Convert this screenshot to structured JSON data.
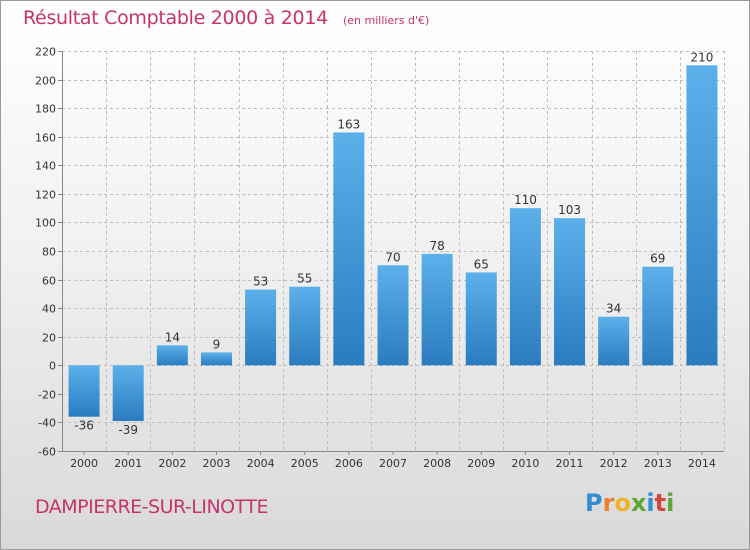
{
  "title": "Résultat Comptable 2000 à 2014",
  "subtitle": "(en milliers d'€)",
  "footer": "DAMPIERRE-SUR-LINOTTE",
  "logo": {
    "text": "Proxiti",
    "letters": [
      {
        "ch": "P",
        "color": "#2f8fd0"
      },
      {
        "ch": "r",
        "color": "#e9812a"
      },
      {
        "ch": "o",
        "color": "#f0b12a"
      },
      {
        "ch": "x",
        "color": "#5aa832"
      },
      {
        "ch": "i",
        "color": "#2f8fd0"
      },
      {
        "ch": "t",
        "color": "#d9423e"
      },
      {
        "ch": "i",
        "color": "#5aa832"
      }
    ]
  },
  "colors": {
    "accent": "#c8336c",
    "bar_light": "#5cb0ea",
    "bar_dark": "#2a7cbf",
    "grid": "#bdbdbd",
    "axis_text": "#333333"
  },
  "chart_data": {
    "type": "bar",
    "categories": [
      "2000",
      "2001",
      "2002",
      "2003",
      "2004",
      "2005",
      "2006",
      "2007",
      "2008",
      "2009",
      "2010",
      "2011",
      "2012",
      "2013",
      "2014"
    ],
    "values": [
      -36,
      -39,
      14,
      9,
      53,
      55,
      163,
      70,
      78,
      65,
      110,
      103,
      34,
      69,
      210
    ],
    "data_labels": [
      "-36",
      "-39",
      "14",
      "9",
      "53",
      "55",
      "163",
      "70",
      "78",
      "65",
      "110",
      "103",
      "34",
      "69",
      "210"
    ],
    "ylim": [
      -60,
      220
    ],
    "yticks": [
      -60,
      -40,
      -20,
      0,
      20,
      40,
      60,
      80,
      100,
      120,
      140,
      160,
      180,
      200,
      220
    ],
    "grid": true,
    "xlabel": "",
    "ylabel": ""
  }
}
